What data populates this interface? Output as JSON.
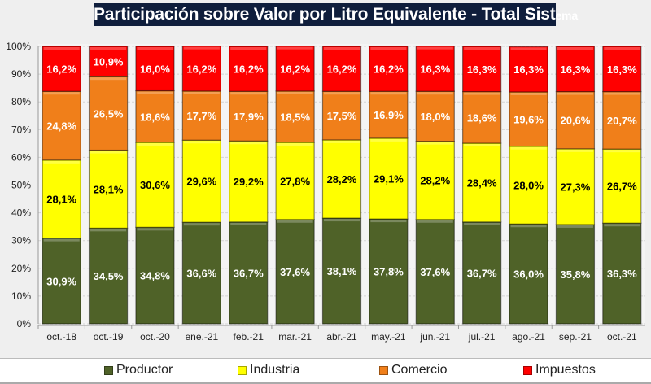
{
  "title_main": "Participación sobre Valor por Litro Equivalente - Total Sist",
  "title_tail": "ema",
  "colors": {
    "Productor": "#4f6228",
    "Industria": "#ffff00",
    "Comercio": "#f07f1a",
    "Impuestos": "#ff0000"
  },
  "chart_data": {
    "type": "bar",
    "stacked": true,
    "title": "Participación sobre Valor por Litro Equivalente - Total Sistema",
    "xlabel": "",
    "ylabel": "",
    "ylim": [
      0,
      100
    ],
    "yticks": [
      "0%",
      "10%",
      "20%",
      "30%",
      "40%",
      "50%",
      "60%",
      "70%",
      "80%",
      "90%",
      "100%"
    ],
    "grid": true,
    "legend": "bottom",
    "categories": [
      "oct.-18",
      "oct.-19",
      "oct.-20",
      "ene.-21",
      "feb.-21",
      "mar.-21",
      "abr.-21",
      "may.-21",
      "jun.-21",
      "jul.-21",
      "ago.-21",
      "sep.-21",
      "oct.-21"
    ],
    "series": [
      {
        "name": "Productor",
        "values": [
          30.9,
          34.5,
          34.8,
          36.6,
          36.7,
          37.6,
          38.1,
          37.8,
          37.6,
          36.7,
          36.0,
          35.8,
          36.3
        ],
        "labels": [
          "30,9%",
          "34,5%",
          "34,8%",
          "36,6%",
          "36,7%",
          "37,6%",
          "38,1%",
          "37,8%",
          "37,6%",
          "36,7%",
          "36,0%",
          "35,8%",
          "36,3%"
        ]
      },
      {
        "name": "Industria",
        "values": [
          28.1,
          28.1,
          30.6,
          29.6,
          29.2,
          27.8,
          28.2,
          29.1,
          28.2,
          28.4,
          28.0,
          27.3,
          26.7
        ],
        "labels": [
          "28,1%",
          "28,1%",
          "30,6%",
          "29,6%",
          "29,2%",
          "27,8%",
          "28,2%",
          "29,1%",
          "28,2%",
          "28,4%",
          "28,0%",
          "27,3%",
          "26,7%"
        ]
      },
      {
        "name": "Comercio",
        "values": [
          24.8,
          26.5,
          18.6,
          17.7,
          17.9,
          18.5,
          17.5,
          16.9,
          18.0,
          18.6,
          19.6,
          20.6,
          20.7
        ],
        "labels": [
          "24,8%",
          "26,5%",
          "18,6%",
          "17,7%",
          "17,9%",
          "18,5%",
          "17,5%",
          "16,9%",
          "18,0%",
          "18,6%",
          "19,6%",
          "20,6%",
          "20,7%"
        ]
      },
      {
        "name": "Impuestos",
        "values": [
          16.2,
          10.9,
          16.0,
          16.2,
          16.2,
          16.2,
          16.2,
          16.2,
          16.3,
          16.3,
          16.3,
          16.3,
          16.3
        ],
        "labels": [
          "16,2%",
          "10,9%",
          "16,0%",
          "16,2%",
          "16,2%",
          "16,2%",
          "16,2%",
          "16,2%",
          "16,3%",
          "16,3%",
          "16,3%",
          "16,3%",
          "16,3%"
        ]
      }
    ]
  }
}
